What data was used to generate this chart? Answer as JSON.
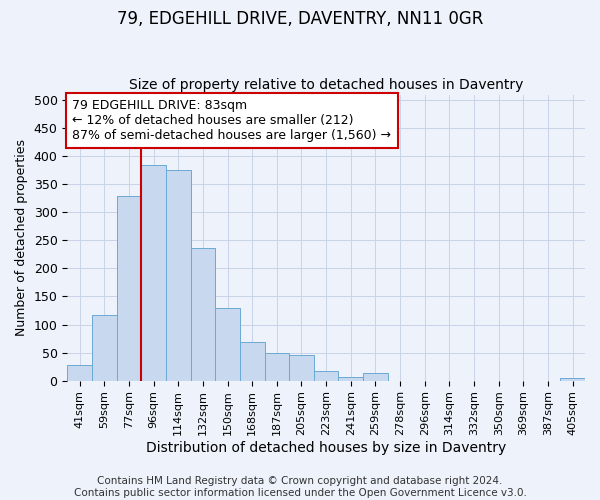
{
  "title": "79, EDGEHILL DRIVE, DAVENTRY, NN11 0GR",
  "subtitle": "Size of property relative to detached houses in Daventry",
  "xlabel": "Distribution of detached houses by size in Daventry",
  "ylabel": "Number of detached properties",
  "footer_line1": "Contains HM Land Registry data © Crown copyright and database right 2024.",
  "footer_line2": "Contains public sector information licensed under the Open Government Licence v3.0.",
  "bin_labels": [
    "41sqm",
    "59sqm",
    "77sqm",
    "96sqm",
    "114sqm",
    "132sqm",
    "150sqm",
    "168sqm",
    "187sqm",
    "205sqm",
    "223sqm",
    "241sqm",
    "259sqm",
    "278sqm",
    "296sqm",
    "314sqm",
    "332sqm",
    "350sqm",
    "369sqm",
    "387sqm",
    "405sqm"
  ],
  "bar_heights": [
    27,
    117,
    330,
    385,
    375,
    237,
    130,
    68,
    50,
    45,
    18,
    7,
    13,
    0,
    0,
    0,
    0,
    0,
    0,
    0,
    4
  ],
  "bar_color": "#c8d9ef",
  "bar_edge_color": "#6aaad4",
  "red_line_x": 2.5,
  "red_line_color": "#cc0000",
  "annotation_line1": "79 EDGEHILL DRIVE: 83sqm",
  "annotation_line2": "← 12% of detached houses are smaller (212)",
  "annotation_line3": "87% of semi-detached houses are larger (1,560) →",
  "annotation_box_color": "#ffffff",
  "annotation_box_edge_color": "#cc0000",
  "ylim": [
    0,
    510
  ],
  "yticks": [
    0,
    50,
    100,
    150,
    200,
    250,
    300,
    350,
    400,
    450,
    500
  ],
  "grid_color": "#c8d4e8",
  "background_color": "#edf2fb",
  "plot_bg_color": "#edf2fb",
  "title_fontsize": 12,
  "subtitle_fontsize": 10,
  "annotation_fontsize": 9,
  "ylabel_fontsize": 9,
  "xlabel_fontsize": 10,
  "footer_fontsize": 7.5
}
